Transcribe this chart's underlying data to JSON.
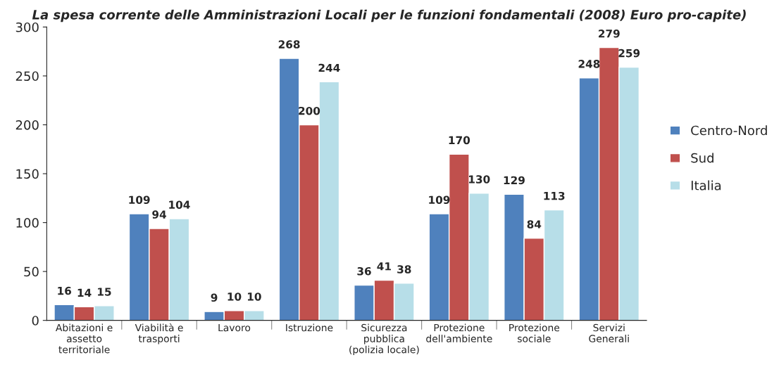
{
  "chart_data": {
    "type": "bar",
    "title": "La spesa corrente delle Amministrazioni Locali per le funzioni fondamentali (2008) Euro pro-capite)",
    "categories": [
      "Abitazioni e\nassetto\nterritoriale",
      "Viabilità e\ntrasporti",
      "Lavoro",
      "Istruzione",
      "Sicurezza\npubblica\n(polizia locale)",
      "Protezione\ndell'ambiente",
      "Protezione\nsociale",
      "Servizi\nGenerali"
    ],
    "series": [
      {
        "name": "Centro-Nord",
        "color": "#4f81bd",
        "values": [
          16,
          109,
          9,
          268,
          36,
          109,
          129,
          248
        ]
      },
      {
        "name": "Sud",
        "color": "#c0504d",
        "values": [
          14,
          94,
          10,
          200,
          41,
          170,
          84,
          279
        ]
      },
      {
        "name": "Italia",
        "color": "#b7dee8",
        "values": [
          15,
          104,
          10,
          244,
          38,
          130,
          113,
          259
        ]
      }
    ],
    "ylim": [
      0,
      300
    ],
    "yticks": [
      0,
      50,
      100,
      150,
      200,
      250,
      300
    ],
    "data_labels": true,
    "legend": "right",
    "grid": false
  }
}
